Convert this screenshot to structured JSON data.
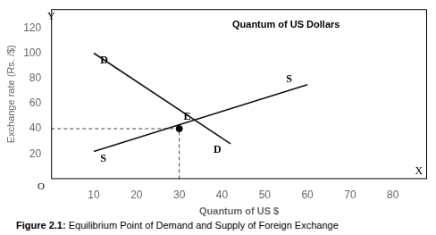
{
  "chart_data": {
    "type": "line",
    "xlabel": "Quantum of US $",
    "ylabel": "Exchange rate (Rs. /$)",
    "caption": "Figure 2.1: Equilibrium Point of Demand and Supply of Foreign Exchange",
    "series": [
      {
        "type": "line",
        "color": "#111111",
        "line_style": "solid",
        "x": [
          10,
          42
        ],
        "values": [
          100,
          28
        ]
      },
      {
        "type": "line",
        "color": "#111111",
        "line_style": "solid",
        "x": [
          10,
          60
        ],
        "values": [
          22,
          75
        ]
      },
      {
        "type": "line",
        "color": "#444444",
        "line_style": "dashed",
        "x": [
          0,
          30
        ],
        "values": [
          40,
          40
        ]
      },
      {
        "type": "line",
        "color": "#444444",
        "line_style": "dashed",
        "x": [
          30,
          30
        ],
        "values": [
          0,
          40
        ]
      },
      {
        "type": "scatter",
        "color": "#000000",
        "marker": "circle",
        "x": [
          30
        ],
        "values": [
          40
        ]
      }
    ],
    "annotations": [
      {
        "text": "D",
        "x": 11.5,
        "y": 98
      },
      {
        "text": "D",
        "x": 38,
        "y": 27
      },
      {
        "text": "S",
        "x": 11.5,
        "y": 20
      },
      {
        "text": "S",
        "x": 55,
        "y": 75
      },
      {
        "text": "E",
        "x": 31,
        "y": 45
      },
      {
        "text": "Quantum of US Dollars",
        "x": 55,
        "y": 126
      },
      {
        "text": "Y",
        "x": 0,
        "y": 133
      },
      {
        "text": "X",
        "x": 87,
        "y": 2
      },
      {
        "text": "O",
        "x": -1.5,
        "y": -2
      }
    ],
    "xlim": [
      0,
      88
    ],
    "ylim": [
      0,
      135
    ],
    "xticks": [
      10,
      20,
      30,
      40,
      50,
      60,
      70,
      80
    ],
    "yticks": [
      20,
      40,
      60,
      80,
      100,
      120
    ],
    "grid": false
  }
}
